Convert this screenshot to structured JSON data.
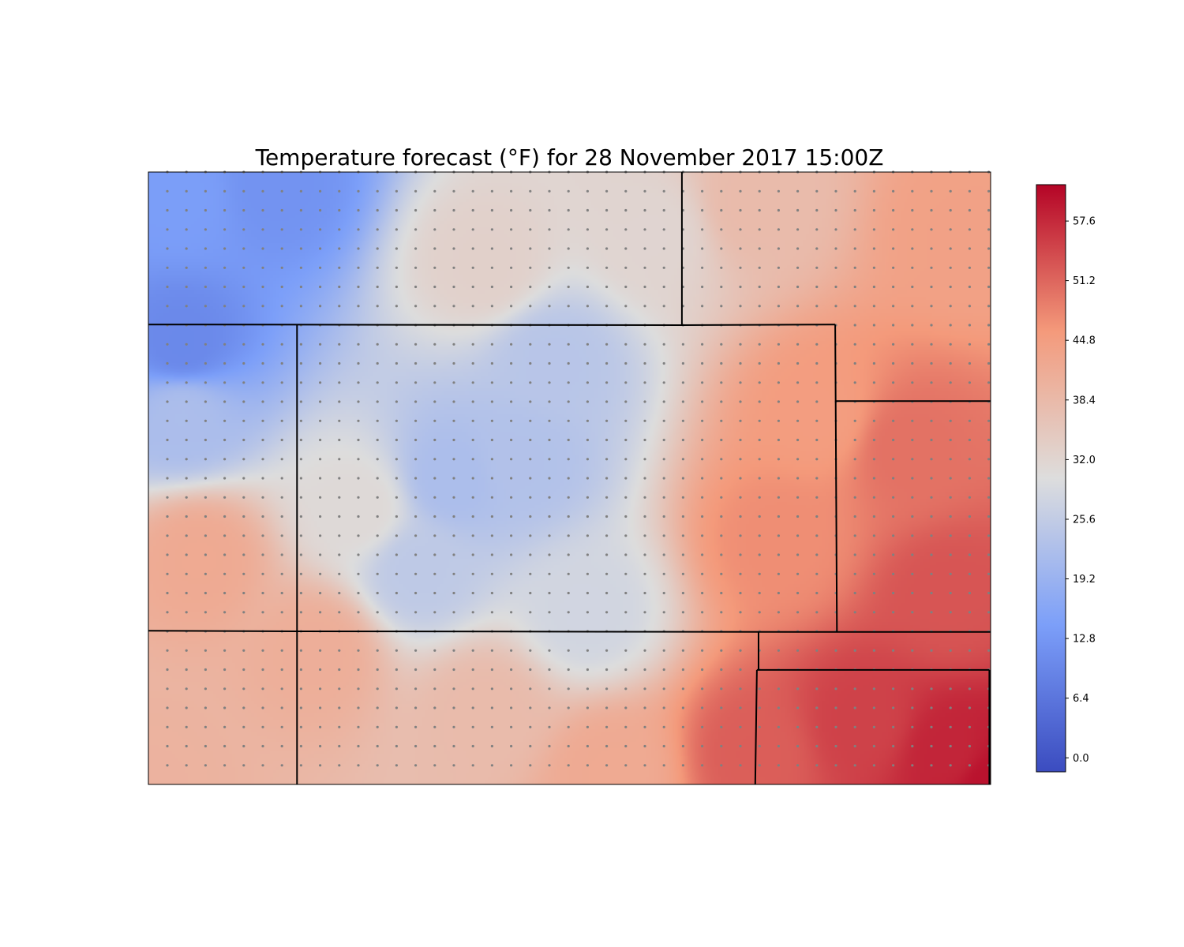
{
  "chart_data": {
    "type": "heatmap",
    "title": "Temperature forecast (°F) for 28 November 2017 15:00Z",
    "xlabel": "",
    "ylabel": "",
    "colormap": "coolwarm",
    "colorbar": {
      "range": [
        -1.5,
        61.5
      ],
      "ticks": [
        0.0,
        6.4,
        12.8,
        19.2,
        25.6,
        32.0,
        38.4,
        44.8,
        51.2,
        57.6
      ],
      "tick_labels": [
        "0.0",
        "6.4",
        "12.8",
        "19.2",
        "25.6",
        "32.0",
        "38.4",
        "44.8",
        "51.2",
        "57.6"
      ]
    },
    "grid_points": {
      "columns": 44,
      "rows": 32,
      "color": "#808080"
    },
    "temperature_samples": [
      {
        "x": 0.04,
        "y": 0.04,
        "value": 14
      },
      {
        "x": 0.15,
        "y": 0.02,
        "value": 12
      },
      {
        "x": 0.04,
        "y": 0.28,
        "value": 10
      },
      {
        "x": 0.04,
        "y": 0.4,
        "value": 22
      },
      {
        "x": 0.48,
        "y": 0.31,
        "value": 24
      },
      {
        "x": 0.36,
        "y": 0.5,
        "value": 22
      },
      {
        "x": 0.44,
        "y": 0.47,
        "value": 23
      },
      {
        "x": 0.32,
        "y": 0.65,
        "value": 25
      },
      {
        "x": 0.52,
        "y": 0.72,
        "value": 28
      },
      {
        "x": 0.4,
        "y": 0.15,
        "value": 33
      },
      {
        "x": 0.6,
        "y": 0.1,
        "value": 32
      },
      {
        "x": 0.25,
        "y": 0.55,
        "value": 31
      },
      {
        "x": 0.06,
        "y": 0.63,
        "value": 42
      },
      {
        "x": 0.2,
        "y": 0.78,
        "value": 41
      },
      {
        "x": 0.4,
        "y": 0.88,
        "value": 38
      },
      {
        "x": 0.72,
        "y": 0.05,
        "value": 38
      },
      {
        "x": 0.97,
        "y": 0.1,
        "value": 44
      },
      {
        "x": 0.8,
        "y": 0.4,
        "value": 45
      },
      {
        "x": 0.75,
        "y": 0.6,
        "value": 47
      },
      {
        "x": 0.9,
        "y": 0.45,
        "value": 50
      },
      {
        "x": 0.95,
        "y": 0.7,
        "value": 53
      },
      {
        "x": 0.72,
        "y": 0.95,
        "value": 52
      },
      {
        "x": 0.85,
        "y": 0.9,
        "value": 55
      },
      {
        "x": 1.0,
        "y": 1.0,
        "value": 60
      },
      {
        "x": 0.95,
        "y": 0.95,
        "value": 58
      },
      {
        "x": 0.0,
        "y": 1.0,
        "value": 40
      },
      {
        "x": 0.55,
        "y": 0.98,
        "value": 42
      }
    ],
    "state_boundaries": [
      [
        [
          0.6335,
          0.0
        ],
        [
          0.6335,
          0.25
        ]
      ],
      [
        [
          0.0,
          0.249
        ],
        [
          0.6335,
          0.25
        ],
        [
          0.8155,
          0.249
        ]
      ],
      [
        [
          0.8155,
          0.249
        ],
        [
          0.816,
          0.374
        ],
        [
          0.8175,
          0.75
        ]
      ],
      [
        [
          0.8165,
          0.374
        ],
        [
          1.0,
          0.374
        ]
      ],
      [
        [
          0.1765,
          0.249
        ],
        [
          0.1765,
          0.75
        ],
        [
          0.1765,
          1.0
        ]
      ],
      [
        [
          0.0,
          0.749
        ],
        [
          0.1765,
          0.75
        ],
        [
          0.8175,
          0.751
        ],
        [
          1.0,
          0.751
        ]
      ],
      [
        [
          0.7245,
          0.751
        ],
        [
          0.7245,
          0.812
        ]
      ],
      [
        [
          0.7225,
          0.813
        ],
        [
          0.9985,
          0.813
        ]
      ],
      [
        [
          0.7225,
          0.813
        ],
        [
          0.7205,
          1.0
        ]
      ],
      [
        [
          0.9985,
          0.813
        ],
        [
          0.9985,
          1.0
        ]
      ]
    ]
  }
}
